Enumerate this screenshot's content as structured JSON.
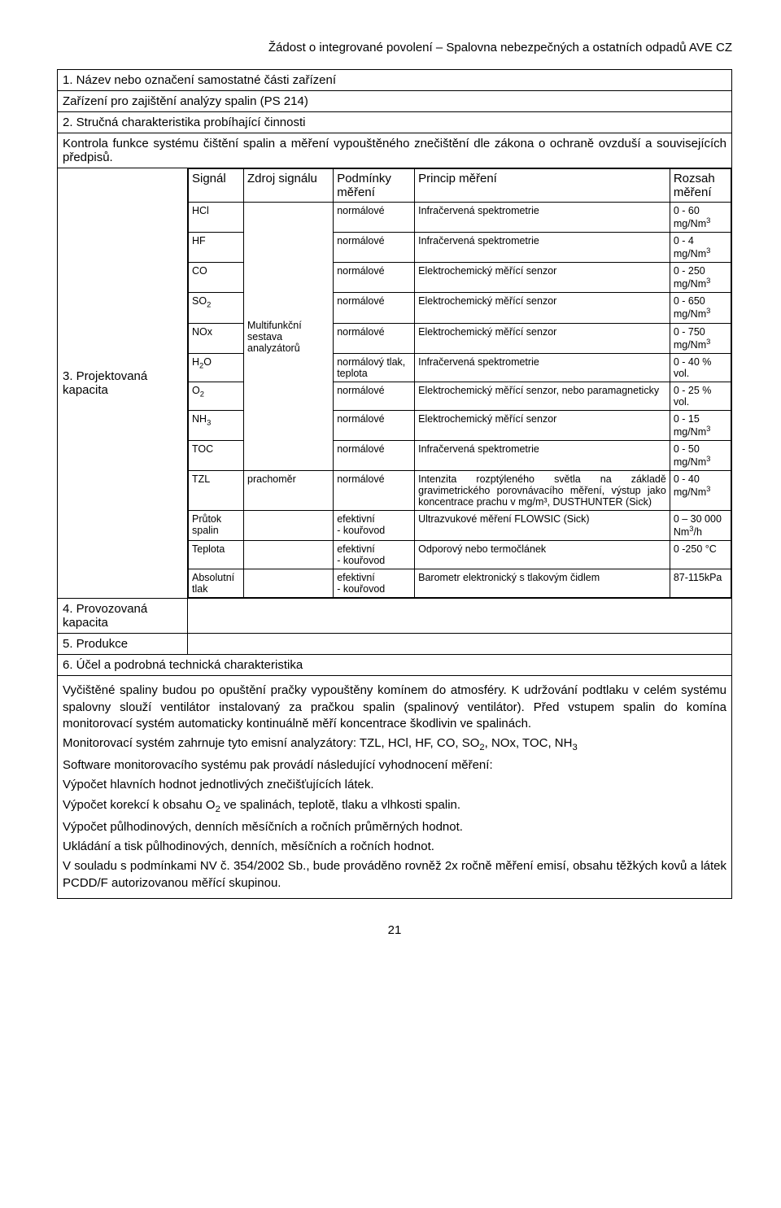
{
  "header": "Žádost o integrované povolení – Spalovna nebezpečných a ostatních odpadů AVE CZ",
  "sec1": {
    "title": "1. Název nebo označení samostatné části zařízení",
    "value": "Zařízení pro zajištění analýzy spalin (PS 214)"
  },
  "sec2": {
    "title": "2. Stručná charakteristika probíhající činnosti",
    "value": "Kontrola funkce systému čištění spalin a měření vypouštěného znečištění dle zákona o ochraně ovzduší a souvisejících předpisů."
  },
  "sec3": {
    "title": "3. Projektovaná kapacita",
    "header": {
      "c1": "Signál",
      "c2": "Zdroj signálu",
      "c3": "Podmínky měření",
      "c4": "Princip měření",
      "c5": "Rozsah měření"
    },
    "source_group": "Multifunkční sestava analyzátorů",
    "source_tzl": "prachoměr",
    "rows": [
      {
        "signal": "HCl",
        "cond": "normálové",
        "principle": "Infračervená spektrometrie",
        "range": "0 - 60 mg/Nm",
        "exp": "3"
      },
      {
        "signal": "HF",
        "cond": "normálové",
        "principle": "Infračervená spektrometrie",
        "range": "0 - 4 mg/Nm",
        "exp": "3"
      },
      {
        "signal": "CO",
        "cond": "normálové",
        "principle": "Elektrochemický měřící senzor",
        "range": "0 - 250 mg/Nm",
        "exp": "3"
      },
      {
        "signal": "SO",
        "signal_sub": "2",
        "cond": "normálové",
        "principle": "Elektrochemický měřící senzor",
        "range": "0 - 650 mg/Nm",
        "exp": "3"
      },
      {
        "signal": "NOx",
        "cond": "normálové",
        "principle": "Elektrochemický měřící senzor",
        "range": "0 - 750 mg/Nm",
        "exp": "3"
      },
      {
        "signal": "H",
        "signal_sub": "2",
        "signal_suffix": "O",
        "cond": "normálový tlak, teplota",
        "principle": "Infračervená spektrometrie",
        "range": "0 - 40 % vol."
      },
      {
        "signal": "O",
        "signal_sub": "2",
        "cond": "normálové",
        "principle": "Elektrochemický měřící senzor, nebo paramagneticky",
        "range": "0 - 25 % vol."
      },
      {
        "signal": "NH",
        "signal_sub": "3",
        "cond": "normálové",
        "principle": "Elektrochemický měřící senzor",
        "range": "0 - 15 mg/Nm",
        "exp": "3"
      },
      {
        "signal": "TOC",
        "cond": "normálové",
        "principle": "Infračervená spektrometrie",
        "range": "0 - 50 mg/Nm",
        "exp": "3"
      },
      {
        "signal": "TZL",
        "cond": "normálové",
        "principle": "Intenzita rozptýleného světla na základě gravimetrického porovnávacího měření, výstup jako koncentrace prachu v mg/m³, DUSTHUNTER (Sick)",
        "range": "0 - 40 mg/Nm",
        "exp": "3"
      },
      {
        "signal": "Průtok spalin",
        "cond": "efektivní            - kouřovod",
        "principle": "Ultrazvukové měření   FLOWSIC (Sick)",
        "range": "0 – 30 000 Nm",
        "exp": "3",
        "range_suffix": "/h"
      },
      {
        "signal": "Teplota",
        "cond": "efektivní            - kouřovod",
        "principle": "Odporový nebo termočlánek",
        "range": "0 -250 °C"
      },
      {
        "signal": "Absolutní tlak",
        "cond": "efektivní            - kouřovod",
        "principle": "Barometr elektronický s tlakovým čidlem",
        "range": "87-115kPa"
      }
    ]
  },
  "sec4": {
    "title": "4. Provozovaná kapacita"
  },
  "sec5": {
    "title": "5. Produkce"
  },
  "sec6": {
    "title": "6. Účel a podrobná technická charakteristika"
  },
  "body": {
    "p1": "Vyčištěné spaliny budou po opuštění pračky vypouštěny komínem do atmosféry. K udržování podtlaku v celém systému spalovny slouží ventilátor instalovaný za pračkou spalin (spalinový ventilátor). Před vstupem spalin do komína monitorovací systém automaticky kontinuálně měří koncentrace škodlivin ve spalinách.",
    "p2_pre": "Monitorovací systém zahrnuje tyto emisní analyzátory: TZL, HCl, HF, CO, SO",
    "p2_sub1": "2",
    "p2_mid": ", NOx, TOC, NH",
    "p2_sub2": "3",
    "p3": "Software monitorovacího systému pak provádí následující vyhodnocení měření:",
    "p4": "Výpočet hlavních hodnot jednotlivých znečišťujících látek.",
    "p5_pre": "Výpočet korekcí k obsahu O",
    "p5_sub": "2",
    "p5_post": " ve spalinách, teplotě, tlaku a vlhkosti spalin.",
    "p6": "Výpočet půlhodinových, denních měsíčních a ročních průměrných hodnot.",
    "p7": "Ukládání a tisk půlhodinových, denních, měsíčních a ročních hodnot.",
    "p8": "V souladu s podmínkami NV č. 354/2002 Sb., bude prováděno rovněž 2x ročně měření emisí, obsahu těžkých kovů a látek PCDD/F autorizovanou měřící skupinou."
  },
  "pagenum": "21",
  "colors": {
    "text": "#000000",
    "border": "#000000",
    "bg": "#ffffff"
  }
}
